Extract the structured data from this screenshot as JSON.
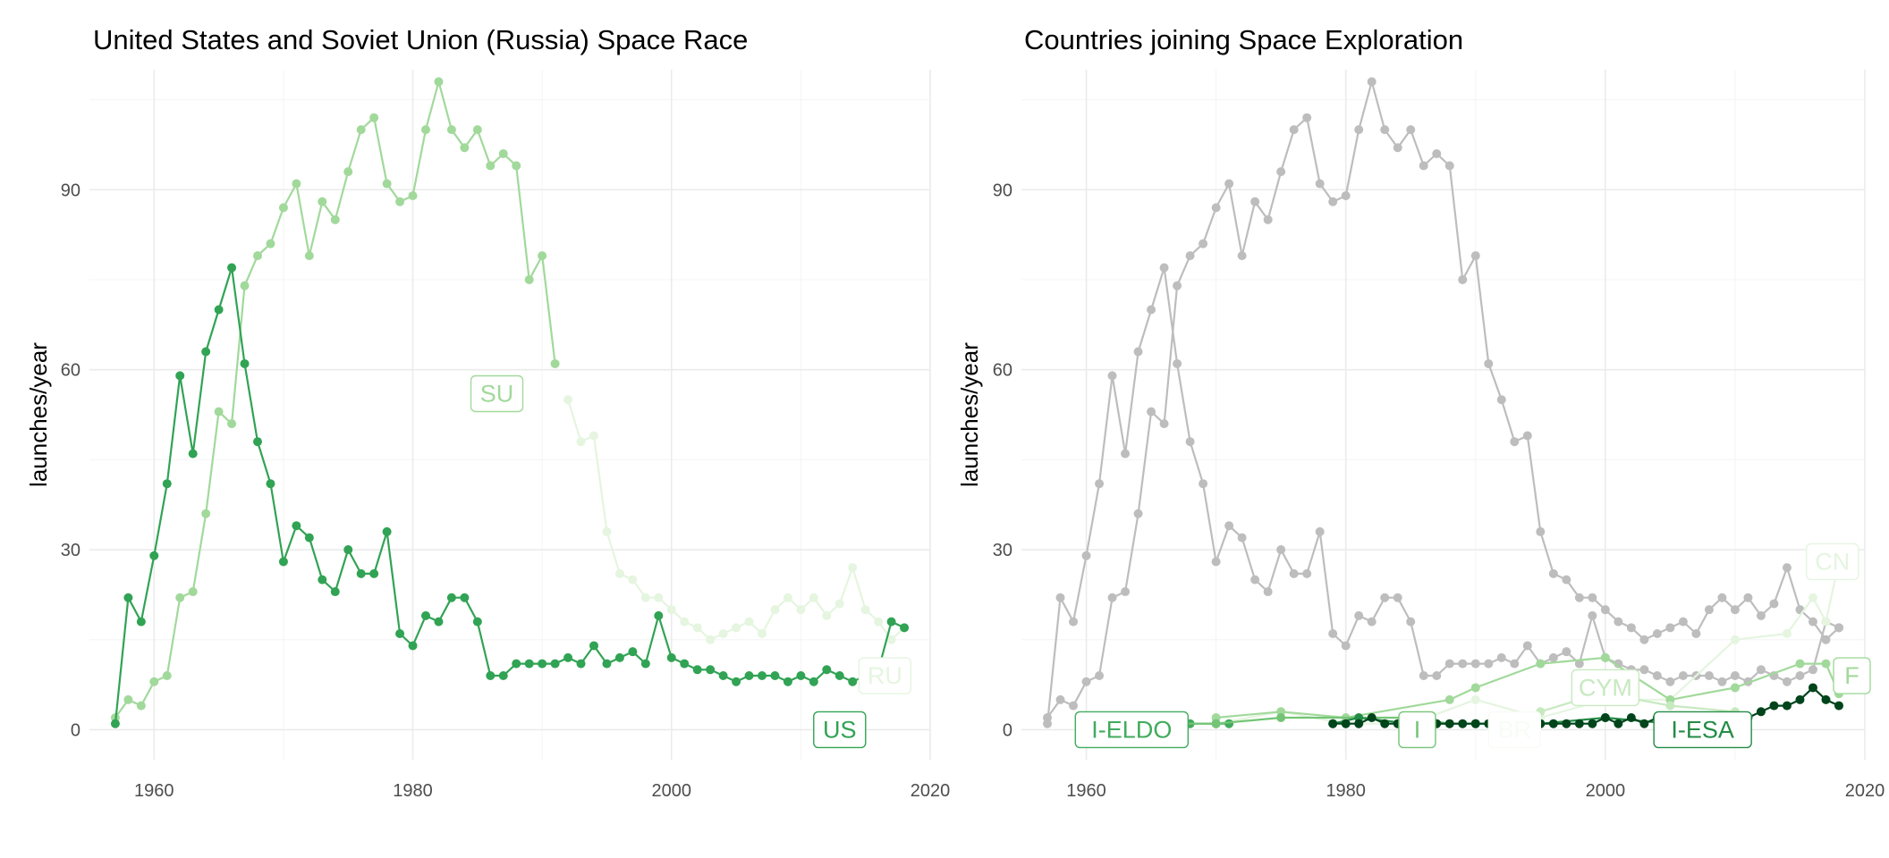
{
  "chart_data": [
    {
      "type": "line",
      "title": "United States and Soviet Union (Russia) Space Race",
      "xlabel": "",
      "ylabel": "launches/year",
      "xlim": [
        1955,
        2020
      ],
      "ylim": [
        -5,
        110
      ],
      "x_ticks": [
        "1960",
        "1980",
        "2000",
        "2020"
      ],
      "y_ticks": [
        "0",
        "30",
        "60",
        "90"
      ],
      "grid": true,
      "series": [
        {
          "name": "SU",
          "color": "#a1d99b",
          "x": [
            1957,
            1958,
            1959,
            1960,
            1961,
            1962,
            1963,
            1964,
            1965,
            1966,
            1967,
            1968,
            1969,
            1970,
            1971,
            1972,
            1973,
            1974,
            1975,
            1976,
            1977,
            1978,
            1979,
            1980,
            1981,
            1982,
            1983,
            1984,
            1985,
            1986,
            1987,
            1988,
            1989,
            1990,
            1991
          ],
          "y": [
            2,
            5,
            4,
            8,
            9,
            22,
            23,
            36,
            53,
            51,
            74,
            79,
            81,
            87,
            91,
            79,
            88,
            85,
            93,
            100,
            102,
            91,
            88,
            89,
            100,
            108,
            100,
            97,
            100,
            94,
            96,
            94,
            75,
            79,
            61
          ]
        },
        {
          "name": "RU",
          "color": "#e5f5e0",
          "x": [
            1992,
            1993,
            1994,
            1995,
            1996,
            1997,
            1998,
            1999,
            2000,
            2001,
            2002,
            2003,
            2004,
            2005,
            2006,
            2007,
            2008,
            2009,
            2010,
            2011,
            2012,
            2013,
            2014,
            2015,
            2016,
            2017,
            2018
          ],
          "y": [
            55,
            48,
            49,
            33,
            26,
            25,
            22,
            22,
            20,
            18,
            17,
            15,
            16,
            17,
            18,
            16,
            20,
            22,
            20,
            22,
            19,
            21,
            27,
            20,
            18,
            15,
            17
          ]
        },
        {
          "name": "US",
          "color": "#31a354",
          "x": [
            1957,
            1958,
            1959,
            1960,
            1961,
            1962,
            1963,
            1964,
            1965,
            1966,
            1967,
            1968,
            1969,
            1970,
            1971,
            1972,
            1973,
            1974,
            1975,
            1976,
            1977,
            1978,
            1979,
            1980,
            1981,
            1982,
            1983,
            1984,
            1985,
            1986,
            1987,
            1988,
            1989,
            1990,
            1991,
            1992,
            1993,
            1994,
            1995,
            1996,
            1997,
            1998,
            1999,
            2000,
            2001,
            2002,
            2003,
            2004,
            2005,
            2006,
            2007,
            2008,
            2009,
            2010,
            2011,
            2012,
            2013,
            2014,
            2015,
            2016,
            2017,
            2018
          ],
          "y": [
            1,
            22,
            18,
            29,
            41,
            59,
            46,
            63,
            70,
            77,
            61,
            48,
            41,
            28,
            34,
            32,
            25,
            23,
            30,
            26,
            26,
            33,
            16,
            14,
            19,
            18,
            22,
            22,
            18,
            9,
            9,
            11,
            11,
            11,
            11,
            12,
            11,
            14,
            11,
            12,
            13,
            11,
            19,
            12,
            11,
            10,
            10,
            9,
            8,
            9,
            9,
            9,
            8,
            9,
            8,
            10,
            9,
            8,
            9,
            10,
            18,
            17
          ]
        }
      ],
      "labels": [
        {
          "text": "SU",
          "x": 1986.5,
          "y": 56,
          "color": "#a1d99b"
        },
        {
          "text": "RU",
          "x": 2016.5,
          "y": 9,
          "color": "#e5f5e0"
        },
        {
          "text": "US",
          "x": 2013,
          "y": 0,
          "color": "#31a354"
        }
      ]
    },
    {
      "type": "line",
      "title": "Countries joining Space Exploration",
      "xlabel": "",
      "ylabel": "launches/year",
      "xlim": [
        1955,
        2020
      ],
      "ylim": [
        -5,
        110
      ],
      "x_ticks": [
        "1960",
        "1980",
        "2000",
        "2020"
      ],
      "y_ticks": [
        "0",
        "30",
        "60",
        "90"
      ],
      "grid": true,
      "background_series": [
        {
          "name": "",
          "color": "#bdbdbd",
          "x": [
            1957,
            1958,
            1959,
            1960,
            1961,
            1962,
            1963,
            1964,
            1965,
            1966,
            1967,
            1968,
            1969,
            1970,
            1971,
            1972,
            1973,
            1974,
            1975,
            1976,
            1977,
            1978,
            1979,
            1980,
            1981,
            1982,
            1983,
            1984,
            1985,
            1986,
            1987,
            1988,
            1989,
            1990,
            1991,
            1992,
            1993,
            1994,
            1995,
            1996,
            1997,
            1998,
            1999,
            2000,
            2001,
            2002,
            2003,
            2004,
            2005,
            2006,
            2007,
            2008,
            2009,
            2010,
            2011,
            2012,
            2013,
            2014,
            2015,
            2016,
            2017,
            2018
          ],
          "y": [
            2,
            5,
            4,
            8,
            9,
            22,
            23,
            36,
            53,
            51,
            74,
            79,
            81,
            87,
            91,
            79,
            88,
            85,
            93,
            100,
            102,
            91,
            88,
            89,
            100,
            108,
            100,
            97,
            100,
            94,
            96,
            94,
            75,
            79,
            61,
            55,
            48,
            49,
            33,
            26,
            25,
            22,
            22,
            20,
            18,
            17,
            15,
            16,
            17,
            18,
            16,
            20,
            22,
            20,
            22,
            19,
            21,
            27,
            20,
            18,
            15,
            17
          ]
        },
        {
          "name": "",
          "color": "#bdbdbd",
          "x": [
            1957,
            1958,
            1959,
            1960,
            1961,
            1962,
            1963,
            1964,
            1965,
            1966,
            1967,
            1968,
            1969,
            1970,
            1971,
            1972,
            1973,
            1974,
            1975,
            1976,
            1977,
            1978,
            1979,
            1980,
            1981,
            1982,
            1983,
            1984,
            1985,
            1986,
            1987,
            1988,
            1989,
            1990,
            1991,
            1992,
            1993,
            1994,
            1995,
            1996,
            1997,
            1998,
            1999,
            2000,
            2001,
            2002,
            2003,
            2004,
            2005,
            2006,
            2007,
            2008,
            2009,
            2010,
            2011,
            2012,
            2013,
            2014,
            2015,
            2016,
            2017,
            2018
          ],
          "y": [
            1,
            22,
            18,
            29,
            41,
            59,
            46,
            63,
            70,
            77,
            61,
            48,
            41,
            28,
            34,
            32,
            25,
            23,
            30,
            26,
            26,
            33,
            16,
            14,
            19,
            18,
            22,
            22,
            18,
            9,
            9,
            11,
            11,
            11,
            11,
            12,
            11,
            14,
            11,
            12,
            13,
            11,
            19,
            12,
            11,
            10,
            10,
            9,
            8,
            9,
            9,
            9,
            8,
            9,
            8,
            10,
            9,
            8,
            9,
            10,
            18,
            17
          ]
        }
      ],
      "series": [
        {
          "name": "CN",
          "color": "#e5f5e0",
          "x": [
            1970,
            1975,
            1980,
            1985,
            1990,
            1995,
            2000,
            2005,
            2010,
            2014,
            2016,
            2017,
            2018
          ],
          "y": [
            1,
            3,
            1,
            1,
            5,
            2,
            5,
            5,
            15,
            16,
            22,
            18,
            28
          ]
        },
        {
          "name": "F",
          "color": "#a1d99b",
          "x": [
            1970,
            1975,
            1980,
            1988,
            1990,
            1995,
            2000,
            2005,
            2010,
            2015,
            2017,
            2018
          ],
          "y": [
            2,
            3,
            2,
            5,
            7,
            11,
            12,
            5,
            7,
            11,
            11,
            6
          ]
        },
        {
          "name": "CYM",
          "color": "#c7e9c0",
          "x": [
            1995,
            1998,
            2000,
            2005,
            2010
          ],
          "y": [
            3,
            5,
            6,
            4,
            3
          ]
        },
        {
          "name": "I-ELDO",
          "color": "#41ab5d",
          "x": [
            1968,
            1970,
            1971
          ],
          "y": [
            1,
            1,
            1
          ]
        },
        {
          "name": "I",
          "color": "#74c476",
          "x": [
            1967,
            1970,
            1975,
            1985,
            1988
          ],
          "y": [
            1,
            1,
            2,
            2,
            1
          ]
        },
        {
          "name": "BR",
          "color": "#f7fcf5",
          "x": [
            1997,
            1999
          ],
          "y": [
            1,
            1
          ]
        },
        {
          "name": "I-ESA",
          "color": "#238b45",
          "x": [
            1979,
            1981,
            1985,
            1990,
            1995,
            2000,
            2005,
            2010
          ],
          "y": [
            1,
            2,
            1,
            1,
            1,
            2,
            1,
            2
          ]
        },
        {
          "name": "",
          "color": "#00441b",
          "x": [
            1979,
            1980,
            1981,
            1982,
            1983,
            1984,
            1985,
            1986,
            1987,
            1988,
            1989,
            1990,
            1991,
            1992,
            1993,
            1994,
            1995,
            1996,
            1997,
            1998,
            1999,
            2000,
            2001,
            2002,
            2003,
            2004,
            2005,
            2006,
            2007,
            2008,
            2009,
            2010,
            2011,
            2012,
            2013,
            2014,
            2015,
            2016,
            2017,
            2018
          ],
          "y": [
            1,
            1,
            1,
            2,
            1,
            1,
            1,
            1,
            1,
            1,
            1,
            1,
            1,
            1,
            1,
            1,
            1,
            1,
            1,
            1,
            1,
            2,
            1,
            2,
            1,
            2,
            2,
            1,
            1,
            2,
            2,
            1,
            2,
            3,
            4,
            4,
            5,
            7,
            5,
            4
          ]
        }
      ],
      "labels": [
        {
          "text": "CN",
          "x": 2017.5,
          "y": 28,
          "color": "#e5f5e0"
        },
        {
          "text": "F",
          "x": 2019,
          "y": 9,
          "color": "#a1d99b"
        },
        {
          "text": "CYM",
          "x": 2000,
          "y": 7,
          "color": "#c7e9c0"
        },
        {
          "text": "I-ELDO",
          "x": 1963.5,
          "y": 0,
          "color": "#41ab5d"
        },
        {
          "text": "I",
          "x": 1985.5,
          "y": 0,
          "color": "#74c476"
        },
        {
          "text": "BR",
          "x": 1993,
          "y": 0,
          "color": "#f7fcf5"
        },
        {
          "text": "I-ESA",
          "x": 2007.5,
          "y": 0,
          "color": "#238b45"
        }
      ]
    }
  ]
}
